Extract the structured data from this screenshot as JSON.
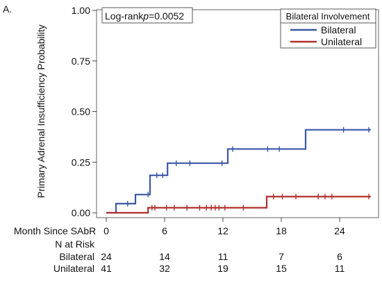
{
  "panel_label": "A.",
  "logrank": {
    "label": "Log-rank",
    "p_label": "p",
    "value": "=0.0052"
  },
  "chart_data": {
    "type": "line",
    "subtype": "kaplan-meier-step",
    "ylabel": "Primary Adrenal Insufficiency Probability",
    "xlabel": "Month Since SAbR",
    "xlim": [
      -1,
      28
    ],
    "ylim": [
      0,
      1
    ],
    "xticks": [
      0,
      6,
      12,
      18,
      24
    ],
    "yticks": [
      {
        "value": 0,
        "label": "0.00"
      },
      {
        "value": 0.25,
        "label": "0.25"
      },
      {
        "value": 0.5,
        "label": "0.50"
      },
      {
        "value": 0.75,
        "label": "0.75"
      },
      {
        "value": 1,
        "label": "1.00"
      }
    ],
    "legend": {
      "title": "Bilateral Involvement",
      "position": "top-right"
    },
    "series": [
      {
        "name": "Bilateral",
        "color": "#3a56a8",
        "steps": [
          [
            0,
            0
          ],
          [
            1,
            0.045
          ],
          [
            3,
            0.09
          ],
          [
            4.5,
            0.185
          ],
          [
            6.3,
            0.245
          ],
          [
            12.5,
            0.315
          ],
          [
            20.5,
            0.41
          ],
          [
            27.2,
            0.41
          ]
        ],
        "censored": [
          [
            2.2,
            0.045
          ],
          [
            4.3,
            0.09
          ],
          [
            5.2,
            0.185
          ],
          [
            5.8,
            0.185
          ],
          [
            7.2,
            0.245
          ],
          [
            8.6,
            0.245
          ],
          [
            11.9,
            0.245
          ],
          [
            13.0,
            0.315
          ],
          [
            16.6,
            0.315
          ],
          [
            17.8,
            0.315
          ],
          [
            24.4,
            0.41
          ],
          [
            27.0,
            0.41
          ]
        ]
      },
      {
        "name": "Unilateral",
        "color": "#b0302d",
        "steps": [
          [
            0,
            0
          ],
          [
            4.2,
            0.0
          ],
          [
            4.3,
            0.025
          ],
          [
            16.4,
            0.025
          ],
          [
            16.5,
            0.08
          ],
          [
            27.2,
            0.08
          ]
        ],
        "censored": [
          [
            4.7,
            0.025
          ],
          [
            5.0,
            0.025
          ],
          [
            6.2,
            0.025
          ],
          [
            7.0,
            0.025
          ],
          [
            8.3,
            0.025
          ],
          [
            9.6,
            0.025
          ],
          [
            10.3,
            0.025
          ],
          [
            10.8,
            0.025
          ],
          [
            11.2,
            0.025
          ],
          [
            11.6,
            0.025
          ],
          [
            12.2,
            0.025
          ],
          [
            14.1,
            0.025
          ],
          [
            17.2,
            0.08
          ],
          [
            18.1,
            0.08
          ],
          [
            19.5,
            0.08
          ],
          [
            21.8,
            0.08
          ],
          [
            22.5,
            0.08
          ],
          [
            23.2,
            0.08
          ],
          [
            27.0,
            0.08
          ]
        ]
      }
    ]
  },
  "risk_table": {
    "header": "N at Risk",
    "rows": [
      {
        "label": "Bilateral",
        "values": [
          "24",
          "14",
          "11",
          "7",
          "6"
        ]
      },
      {
        "label": "Unilateral",
        "values": [
          "41",
          "32",
          "19",
          "15",
          "11"
        ]
      }
    ]
  }
}
